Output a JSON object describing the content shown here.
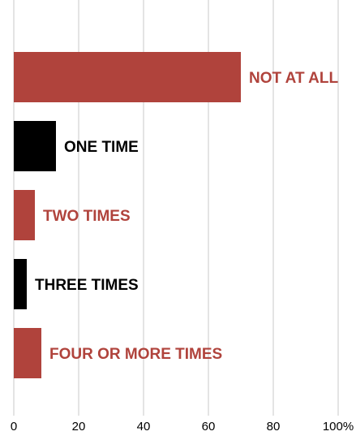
{
  "chart_data": {
    "type": "bar",
    "orientation": "horizontal",
    "categories": [
      "NOT AT ALL",
      "ONE TIME",
      "TWO TIMES",
      "THREE TIMES",
      "FOUR OR MORE TIMES"
    ],
    "values": [
      70,
      13,
      6.5,
      4,
      8.5
    ],
    "colors": [
      "#b0433c",
      "#000000",
      "#b0433c",
      "#000000",
      "#b0433c"
    ],
    "label_colors": [
      "#b0433c",
      "#000000",
      "#b0433c",
      "#000000",
      "#b0433c"
    ],
    "xlim": [
      0,
      100
    ],
    "x_ticks": [
      0,
      20,
      40,
      60,
      80,
      100
    ],
    "x_tick_labels": [
      "0",
      "20",
      "40",
      "60",
      "80",
      "100%"
    ],
    "title": "",
    "xlabel": "",
    "ylabel": "",
    "grid": "vertical",
    "gridline_color": "#c8c8c8"
  }
}
